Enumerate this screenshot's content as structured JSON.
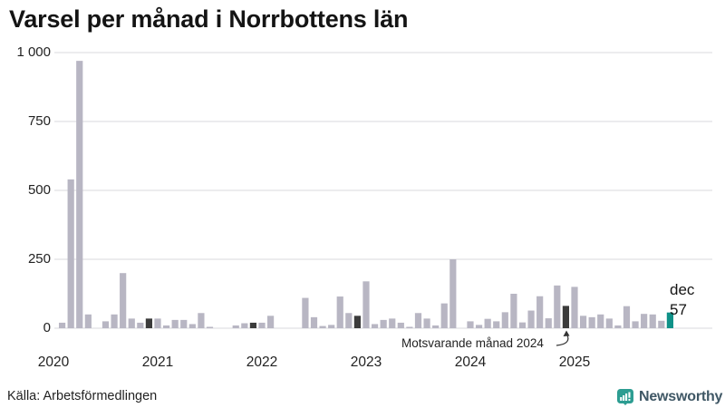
{
  "chart_data": {
    "type": "bar",
    "title": "Varsel per månad i Norrbottens län",
    "source": "Källa: Arbetsförmedlingen",
    "xlabel": "",
    "ylabel": "",
    "ylim": [
      0,
      1000
    ],
    "yticks": [
      0,
      250,
      500,
      750,
      1000
    ],
    "ytick_labels": [
      "0",
      "250",
      "500",
      "750",
      "1 000"
    ],
    "grid": true,
    "years": [
      {
        "year": "2020",
        "values": [
          0,
          20,
          540,
          970,
          50,
          0,
          25,
          50,
          200,
          35,
          20,
          35
        ]
      },
      {
        "year": "2021",
        "values": [
          35,
          10,
          30,
          30,
          15,
          55,
          5,
          0,
          0,
          10,
          18,
          20
        ]
      },
      {
        "year": "2022",
        "values": [
          20,
          45,
          0,
          0,
          0,
          110,
          40,
          8,
          12,
          115,
          55,
          45
        ]
      },
      {
        "year": "2023",
        "values": [
          170,
          15,
          30,
          35,
          20,
          5,
          55,
          35,
          10,
          90,
          250,
          0
        ]
      },
      {
        "year": "2024",
        "values": [
          25,
          12,
          34,
          25,
          58,
          125,
          21,
          64,
          116,
          36,
          155,
          81
        ]
      },
      {
        "year": "2025",
        "values": [
          150,
          45,
          40,
          50,
          35,
          10,
          80,
          25,
          52,
          50,
          27,
          57
        ]
      }
    ],
    "december_indexes": [
      11,
      23,
      35,
      47,
      59
    ],
    "current_index": 71,
    "annotation": {
      "text": "Motsvarande månad 2024",
      "target": "december 2024"
    },
    "last_point_label": {
      "month_label": "dec",
      "value": "57"
    },
    "colors": {
      "bar": "#b8b6c3",
      "december": "#3b3b3b",
      "current": "#0f9188",
      "grid": "#d9d9de",
      "axis_text": "#222222"
    }
  },
  "footer": {
    "brand": "Newsworthy"
  }
}
